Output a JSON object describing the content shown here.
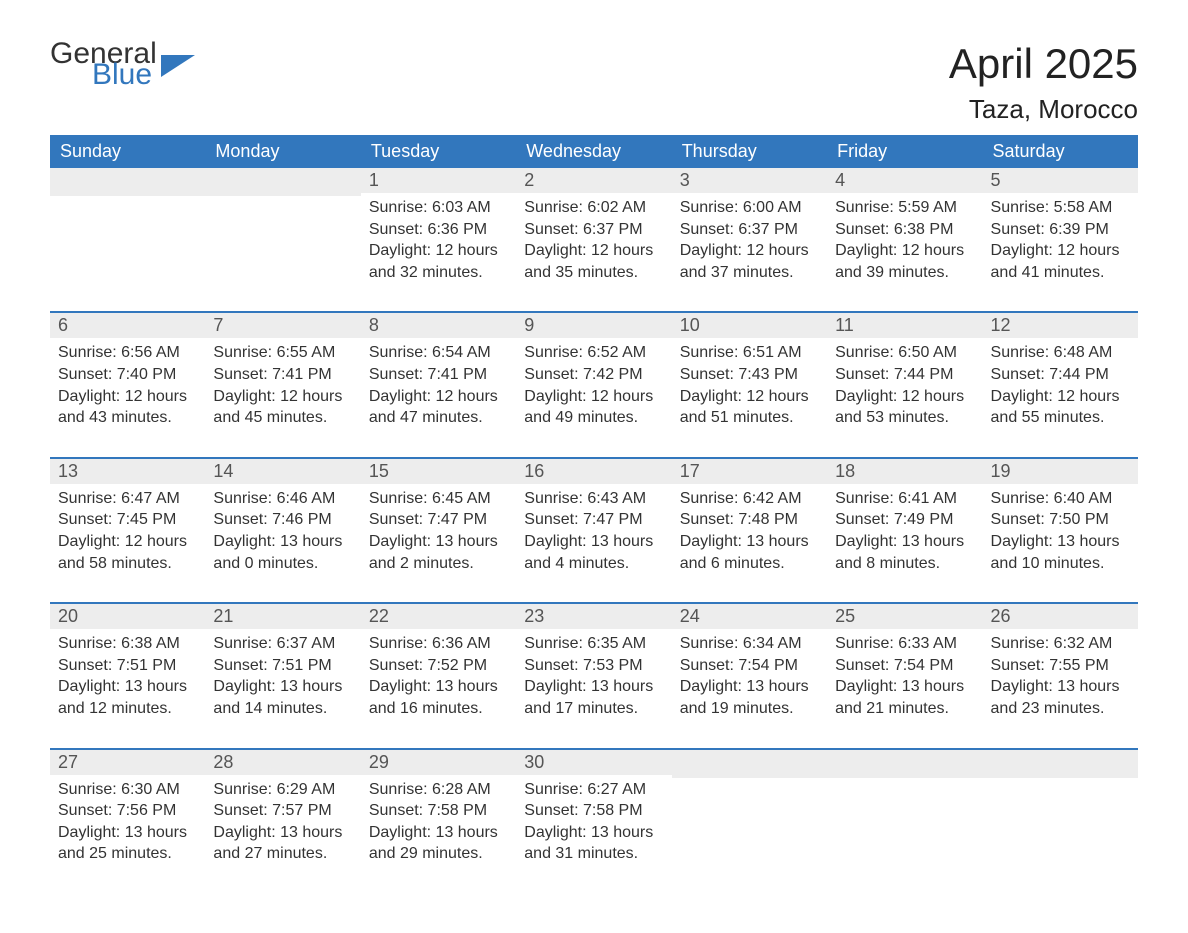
{
  "logo": {
    "text1": "General",
    "text2": "Blue"
  },
  "title": "April 2025",
  "location": "Taza, Morocco",
  "colors": {
    "header_bg": "#3277bd",
    "header_text": "#ffffff",
    "daynum_bg": "#ededed",
    "text": "#333333",
    "accent": "#3277bd"
  },
  "day_headers": [
    "Sunday",
    "Monday",
    "Tuesday",
    "Wednesday",
    "Thursday",
    "Friday",
    "Saturday"
  ],
  "weeks": [
    [
      null,
      null,
      {
        "n": "1",
        "sunrise": "6:03 AM",
        "sunset": "6:36 PM",
        "dl1": "12 hours",
        "dl2": "and 32 minutes."
      },
      {
        "n": "2",
        "sunrise": "6:02 AM",
        "sunset": "6:37 PM",
        "dl1": "12 hours",
        "dl2": "and 35 minutes."
      },
      {
        "n": "3",
        "sunrise": "6:00 AM",
        "sunset": "6:37 PM",
        "dl1": "12 hours",
        "dl2": "and 37 minutes."
      },
      {
        "n": "4",
        "sunrise": "5:59 AM",
        "sunset": "6:38 PM",
        "dl1": "12 hours",
        "dl2": "and 39 minutes."
      },
      {
        "n": "5",
        "sunrise": "5:58 AM",
        "sunset": "6:39 PM",
        "dl1": "12 hours",
        "dl2": "and 41 minutes."
      }
    ],
    [
      {
        "n": "6",
        "sunrise": "6:56 AM",
        "sunset": "7:40 PM",
        "dl1": "12 hours",
        "dl2": "and 43 minutes."
      },
      {
        "n": "7",
        "sunrise": "6:55 AM",
        "sunset": "7:41 PM",
        "dl1": "12 hours",
        "dl2": "and 45 minutes."
      },
      {
        "n": "8",
        "sunrise": "6:54 AM",
        "sunset": "7:41 PM",
        "dl1": "12 hours",
        "dl2": "and 47 minutes."
      },
      {
        "n": "9",
        "sunrise": "6:52 AM",
        "sunset": "7:42 PM",
        "dl1": "12 hours",
        "dl2": "and 49 minutes."
      },
      {
        "n": "10",
        "sunrise": "6:51 AM",
        "sunset": "7:43 PM",
        "dl1": "12 hours",
        "dl2": "and 51 minutes."
      },
      {
        "n": "11",
        "sunrise": "6:50 AM",
        "sunset": "7:44 PM",
        "dl1": "12 hours",
        "dl2": "and 53 minutes."
      },
      {
        "n": "12",
        "sunrise": "6:48 AM",
        "sunset": "7:44 PM",
        "dl1": "12 hours",
        "dl2": "and 55 minutes."
      }
    ],
    [
      {
        "n": "13",
        "sunrise": "6:47 AM",
        "sunset": "7:45 PM",
        "dl1": "12 hours",
        "dl2": "and 58 minutes."
      },
      {
        "n": "14",
        "sunrise": "6:46 AM",
        "sunset": "7:46 PM",
        "dl1": "13 hours",
        "dl2": "and 0 minutes."
      },
      {
        "n": "15",
        "sunrise": "6:45 AM",
        "sunset": "7:47 PM",
        "dl1": "13 hours",
        "dl2": "and 2 minutes."
      },
      {
        "n": "16",
        "sunrise": "6:43 AM",
        "sunset": "7:47 PM",
        "dl1": "13 hours",
        "dl2": "and 4 minutes."
      },
      {
        "n": "17",
        "sunrise": "6:42 AM",
        "sunset": "7:48 PM",
        "dl1": "13 hours",
        "dl2": "and 6 minutes."
      },
      {
        "n": "18",
        "sunrise": "6:41 AM",
        "sunset": "7:49 PM",
        "dl1": "13 hours",
        "dl2": "and 8 minutes."
      },
      {
        "n": "19",
        "sunrise": "6:40 AM",
        "sunset": "7:50 PM",
        "dl1": "13 hours",
        "dl2": "and 10 minutes."
      }
    ],
    [
      {
        "n": "20",
        "sunrise": "6:38 AM",
        "sunset": "7:51 PM",
        "dl1": "13 hours",
        "dl2": "and 12 minutes."
      },
      {
        "n": "21",
        "sunrise": "6:37 AM",
        "sunset": "7:51 PM",
        "dl1": "13 hours",
        "dl2": "and 14 minutes."
      },
      {
        "n": "22",
        "sunrise": "6:36 AM",
        "sunset": "7:52 PM",
        "dl1": "13 hours",
        "dl2": "and 16 minutes."
      },
      {
        "n": "23",
        "sunrise": "6:35 AM",
        "sunset": "7:53 PM",
        "dl1": "13 hours",
        "dl2": "and 17 minutes."
      },
      {
        "n": "24",
        "sunrise": "6:34 AM",
        "sunset": "7:54 PM",
        "dl1": "13 hours",
        "dl2": "and 19 minutes."
      },
      {
        "n": "25",
        "sunrise": "6:33 AM",
        "sunset": "7:54 PM",
        "dl1": "13 hours",
        "dl2": "and 21 minutes."
      },
      {
        "n": "26",
        "sunrise": "6:32 AM",
        "sunset": "7:55 PM",
        "dl1": "13 hours",
        "dl2": "and 23 minutes."
      }
    ],
    [
      {
        "n": "27",
        "sunrise": "6:30 AM",
        "sunset": "7:56 PM",
        "dl1": "13 hours",
        "dl2": "and 25 minutes."
      },
      {
        "n": "28",
        "sunrise": "6:29 AM",
        "sunset": "7:57 PM",
        "dl1": "13 hours",
        "dl2": "and 27 minutes."
      },
      {
        "n": "29",
        "sunrise": "6:28 AM",
        "sunset": "7:58 PM",
        "dl1": "13 hours",
        "dl2": "and 29 minutes."
      },
      {
        "n": "30",
        "sunrise": "6:27 AM",
        "sunset": "7:58 PM",
        "dl1": "13 hours",
        "dl2": "and 31 minutes."
      },
      null,
      null,
      null
    ]
  ],
  "labels": {
    "sunrise": "Sunrise: ",
    "sunset": "Sunset: ",
    "daylight": "Daylight: "
  }
}
